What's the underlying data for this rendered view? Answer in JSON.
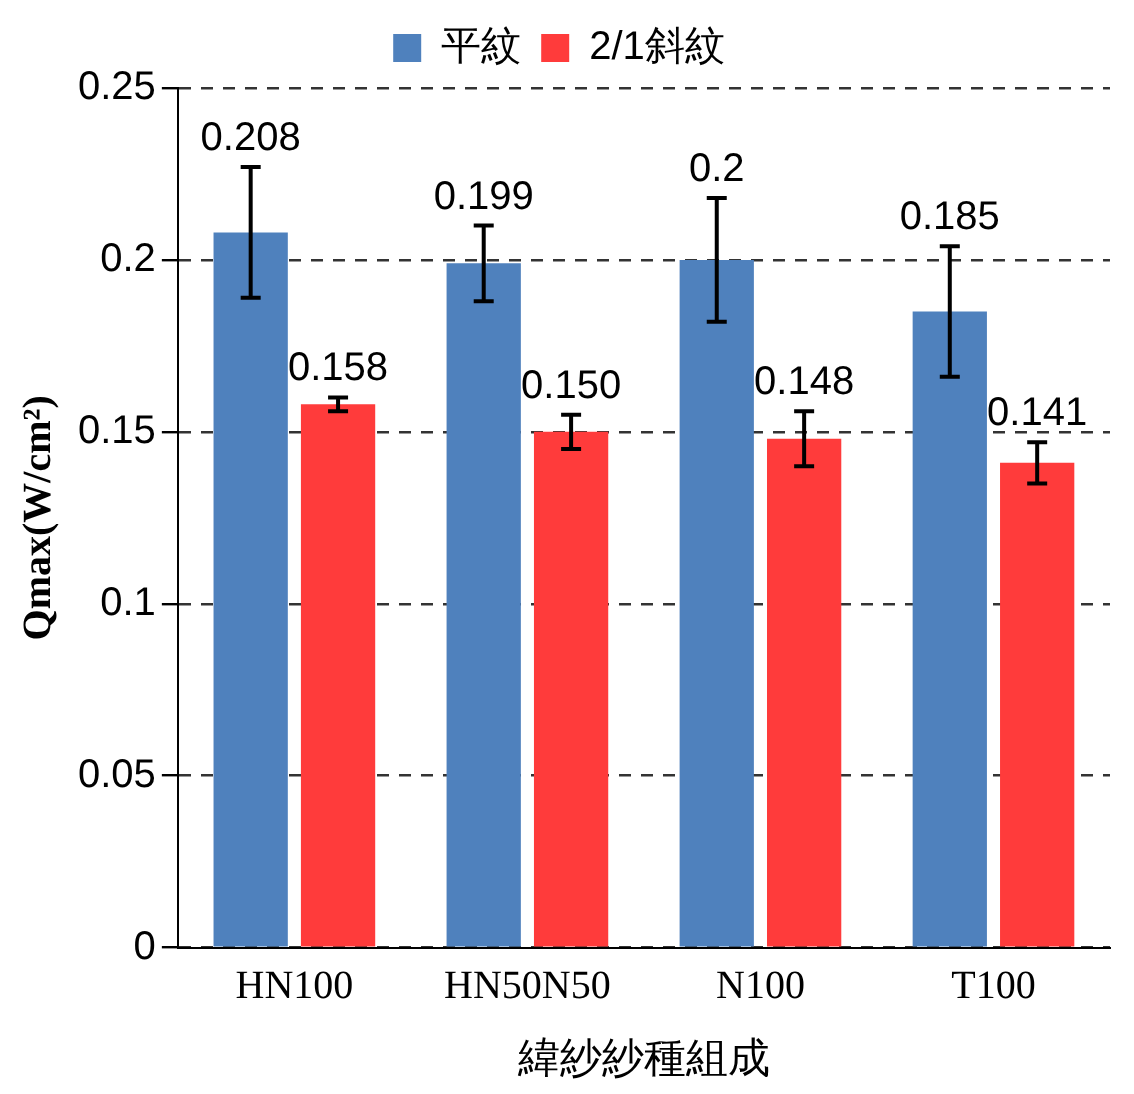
{
  "chart_data": {
    "type": "bar",
    "xlabel": "緯紗紗種組成",
    "ylabel": "Qmax(W/cm²)",
    "categories": [
      "HN100",
      "HN50N50",
      "N100",
      "T100"
    ],
    "series": [
      {
        "name": "平紋",
        "color": "#4f81bd",
        "values": [
          0.208,
          0.199,
          0.2,
          0.185
        ],
        "errors": [
          0.019,
          0.011,
          0.018,
          0.019
        ],
        "value_labels": [
          "0.208",
          "0.199",
          "0.2",
          "0.185"
        ]
      },
      {
        "name": "2/1斜紋",
        "color": "#ff3b3b",
        "values": [
          0.158,
          0.15,
          0.148,
          0.141
        ],
        "errors": [
          0.002,
          0.005,
          0.008,
          0.006
        ],
        "value_labels": [
          "0.158",
          "0.150",
          "0.148",
          "0.141"
        ]
      }
    ],
    "ylim": [
      0,
      0.25
    ],
    "yticks": [
      0,
      0.05,
      0.1,
      0.15,
      0.2,
      0.25
    ],
    "grid": "y",
    "legend": "top"
  }
}
